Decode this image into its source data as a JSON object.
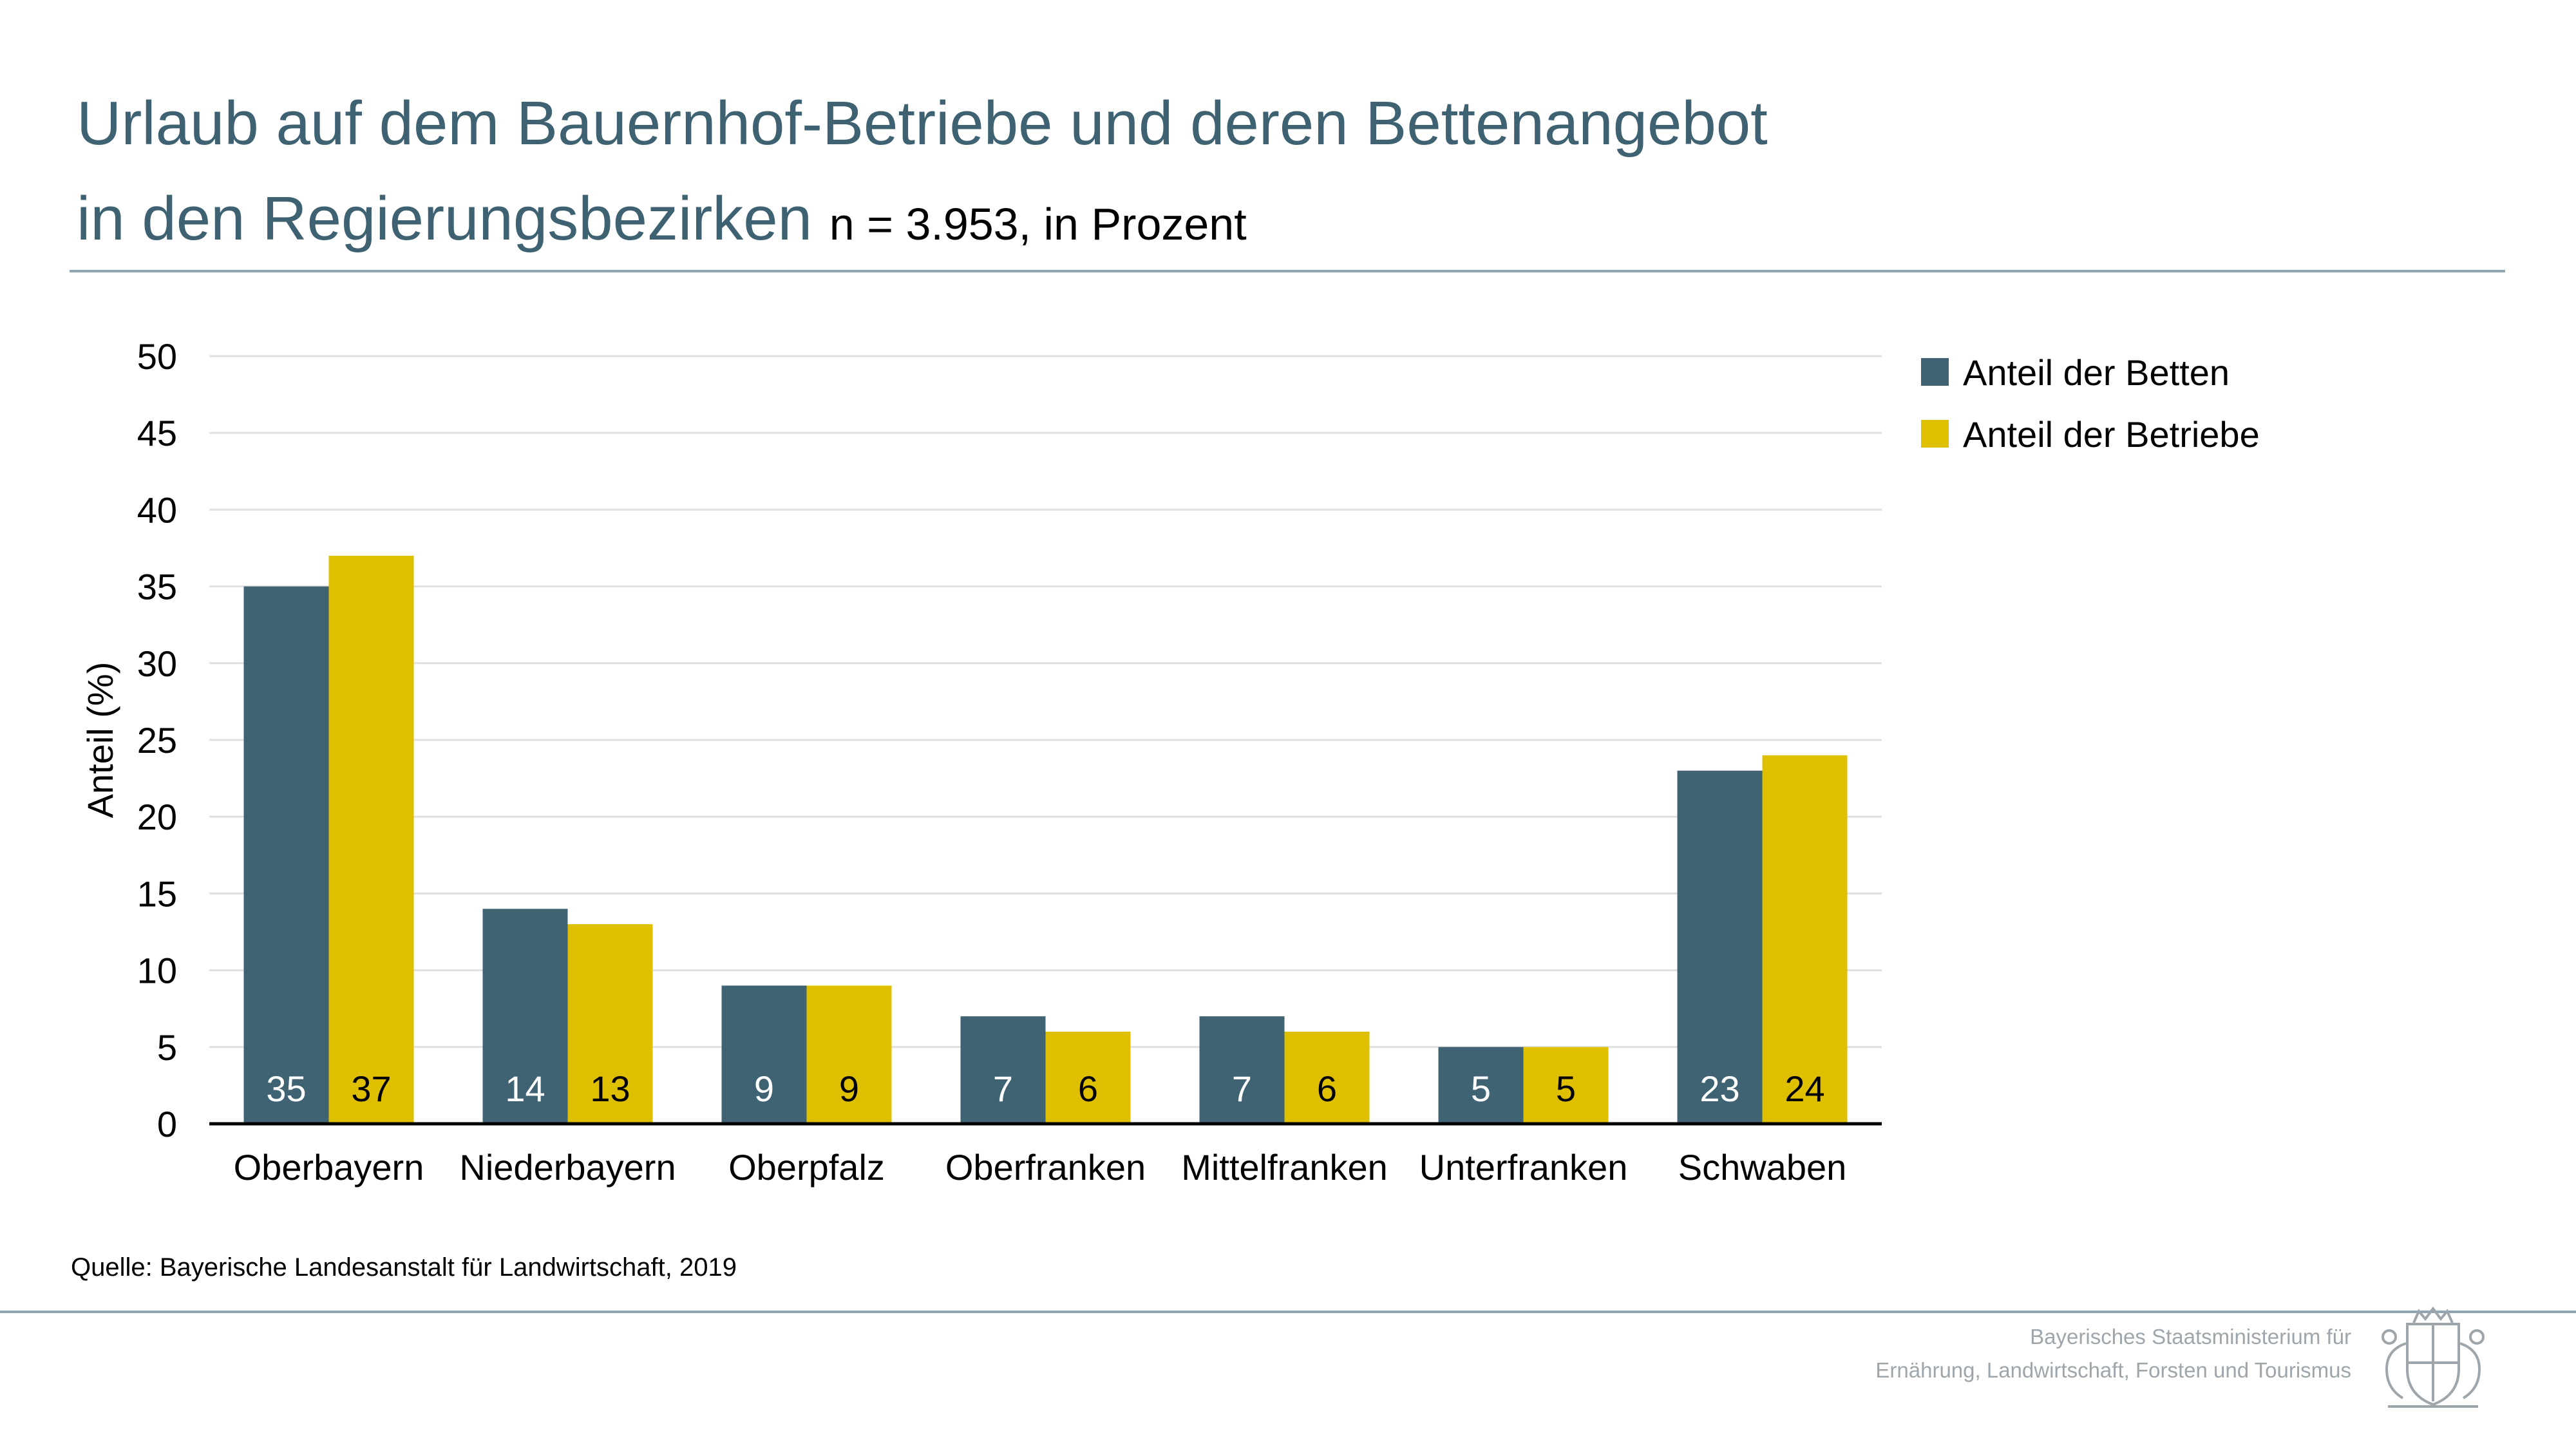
{
  "header": {
    "title_line1": "Urlaub auf dem Bauernhof-Betriebe und deren Bettenangebot",
    "title_line2": "in den Regierungsbezirken",
    "subtitle": "n = 3.953, in Prozent"
  },
  "chart_data": {
    "type": "bar",
    "categories": [
      "Oberbayern",
      "Niederbayern",
      "Oberpfalz",
      "Oberfranken",
      "Mittelfranken",
      "Unterfranken",
      "Schwaben"
    ],
    "series": [
      {
        "name": "Anteil der Betten",
        "values": [
          35,
          14,
          9,
          7,
          7,
          5,
          23
        ],
        "color": "#406373",
        "label_color": "#ffffff"
      },
      {
        "name": "Anteil der Betriebe",
        "values": [
          37,
          13,
          9,
          6,
          6,
          5,
          24
        ],
        "color": "#dfc000",
        "label_color": "#000000"
      }
    ],
    "xlabel": "",
    "ylabel": "Anteil (%)",
    "ylim": [
      0,
      50
    ],
    "yticks": [
      0,
      5,
      10,
      15,
      20,
      25,
      30,
      35,
      40,
      45,
      50
    ],
    "grid": true,
    "legend_position": "top-right"
  },
  "source": "Quelle: Bayerische Landesanstalt für Landwirtschaft, 2019",
  "footer": {
    "line1": "Bayerisches Staatsministerium für",
    "line2": "Ernährung, Landwirtschaft, Forsten und Tourismus",
    "crest_icon": "bavarian-coat-of-arms-icon"
  }
}
